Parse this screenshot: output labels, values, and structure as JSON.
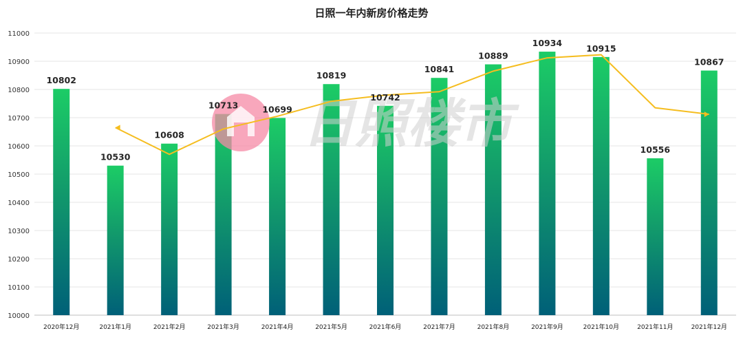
{
  "chart_data": {
    "type": "bar",
    "title": "日照一年内新房价格走势",
    "categories": [
      "2020年12月",
      "2021年1月",
      "2021年2月",
      "2021年3月",
      "2021年4月",
      "2021年5月",
      "2021年6月",
      "2021年7月",
      "2021年8月",
      "2021年9月",
      "2021年10月",
      "2021年11月",
      "2021年12月"
    ],
    "values": [
      10802,
      10530,
      10608,
      10713,
      10699,
      10819,
      10742,
      10841,
      10889,
      10934,
      10915,
      10556,
      10867
    ],
    "trend_line": [
      null,
      10665,
      10570,
      10660,
      10705,
      10758,
      10780,
      10792,
      10865,
      10912,
      10923,
      10735,
      10712
    ],
    "ylim": [
      10000,
      11000
    ],
    "yticks": [
      10000,
      10100,
      10200,
      10300,
      10400,
      10500,
      10600,
      10700,
      10800,
      10900,
      11000
    ],
    "grid": true,
    "colors": {
      "bar_top": "#1ccc66",
      "bar_bottom": "#006078",
      "line": "#f5bd1f"
    },
    "watermark": "日照楼市"
  }
}
